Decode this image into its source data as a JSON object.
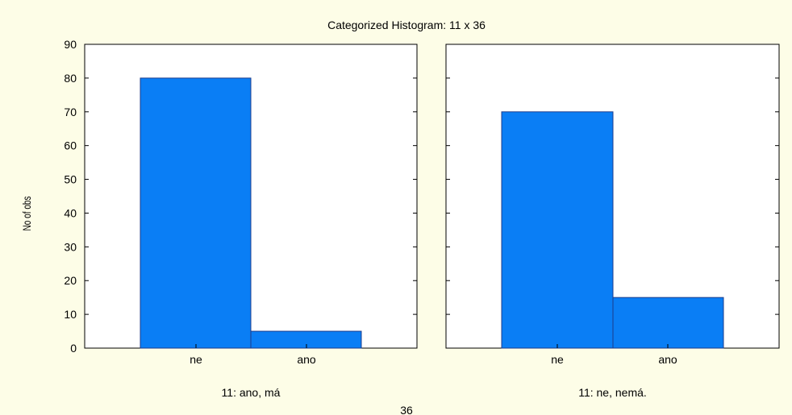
{
  "chart_data": {
    "type": "bar",
    "title": "Categorized Histogram: 11 x 36",
    "ylabel": "No of obs",
    "xlabel": "36",
    "categories": [
      "ne",
      "ano"
    ],
    "ylim": [
      0,
      90
    ],
    "yticks": [
      0,
      10,
      20,
      30,
      40,
      50,
      60,
      70,
      80,
      90
    ],
    "grid": false,
    "bar_color": "#0a7ef5",
    "bar_edge_color": "#1c3c8c",
    "background_color": "#fdfde7",
    "panels": [
      {
        "label": "11: ano, má",
        "values": [
          80,
          5
        ]
      },
      {
        "label": "11: ne, nemá.",
        "values": [
          70,
          15
        ]
      }
    ]
  }
}
